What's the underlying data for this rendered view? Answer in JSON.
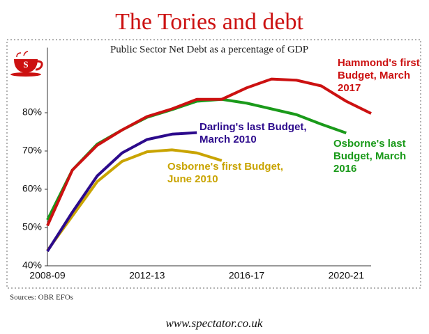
{
  "chart_data": {
    "type": "line",
    "title": "The Tories and debt",
    "subtitle": "Public Sector Net Debt as a percentage of GDP",
    "source": "Sources: OBR EFOs",
    "footer": "www.spectator.co.uk",
    "categories": [
      "2008-09",
      null,
      null,
      null,
      "2012-13",
      null,
      null,
      null,
      "2016-17",
      null,
      null,
      null,
      "2020-21",
      null
    ],
    "ylim": [
      40,
      97
    ],
    "yticks": [
      {
        "value": 40,
        "label": "40%"
      },
      {
        "value": 50,
        "label": "50%"
      },
      {
        "value": 60,
        "label": "60%"
      },
      {
        "value": 70,
        "label": "70%"
      },
      {
        "value": 80,
        "label": "80%"
      }
    ],
    "series": [
      {
        "name": "Hammond's first Budget, March 2017",
        "color": "#cc1111",
        "values": [
          50.5,
          65,
          71.5,
          75.5,
          79,
          81,
          83.5,
          83.5,
          86.5,
          88.8,
          88.5,
          87,
          83,
          79.8
        ]
      },
      {
        "name": "Osborne's last Budget, March 2016",
        "color": "#1a9a1a",
        "values": [
          52,
          65,
          71.8,
          75.5,
          78.8,
          80.8,
          83,
          83.5,
          82.5,
          81,
          79.5,
          77,
          74.7,
          null
        ]
      },
      {
        "name": "Darling's last Budget, March 2010",
        "color": "#2c0a8c",
        "values": [
          43.8,
          54,
          63.5,
          69.5,
          73,
          74.4,
          74.8,
          null,
          null,
          null,
          null,
          null,
          null,
          null
        ]
      },
      {
        "name": "Osborne's first Budget, June 2010",
        "color": "#c9a400",
        "values": [
          44,
          53,
          62,
          67.3,
          69.8,
          70.3,
          69.5,
          67.5,
          null,
          null,
          null,
          null,
          null,
          null
        ]
      }
    ]
  }
}
